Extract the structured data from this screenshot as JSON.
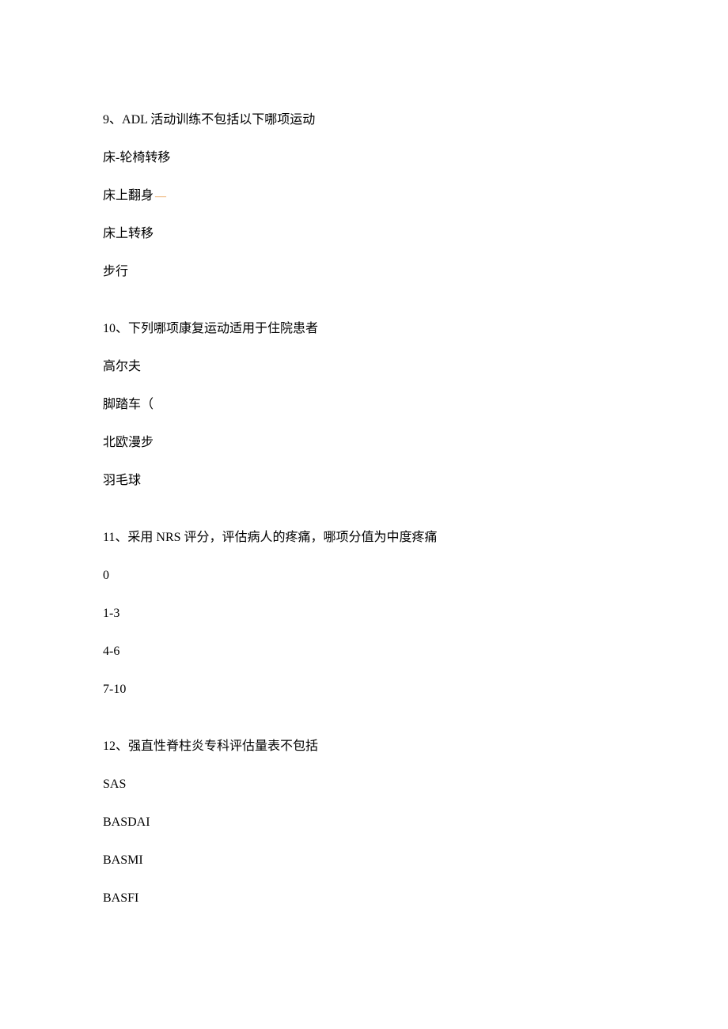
{
  "questions": [
    {
      "number": "9",
      "title": "ADL 活动训练不包括以下哪项运动",
      "options": [
        {
          "text": "床-轮椅转移",
          "mark": ""
        },
        {
          "text": "床上翻身",
          "mark": "—"
        },
        {
          "text": "床上转移",
          "mark": ""
        },
        {
          "text": "步行",
          "mark": ""
        }
      ]
    },
    {
      "number": "10",
      "title": "下列哪项康复运动适用于住院患者",
      "options": [
        {
          "text": "高尔夫",
          "mark": ""
        },
        {
          "text": "脚踏车（",
          "mark": ""
        },
        {
          "text": "北欧漫步",
          "mark": ""
        },
        {
          "text": "羽毛球",
          "mark": ""
        }
      ]
    },
    {
      "number": "11",
      "title": "采用 NRS 评分，评估病人的疼痛，哪项分值为中度疼痛",
      "options": [
        {
          "text": "0",
          "mark": ""
        },
        {
          "text": "1-3",
          "mark": ""
        },
        {
          "text": "4-6",
          "mark": ""
        },
        {
          "text": "7-10",
          "mark": ""
        }
      ]
    },
    {
      "number": "12",
      "title": "强直性脊柱炎专科评估量表不包括",
      "options": [
        {
          "text": "SAS",
          "mark": ""
        },
        {
          "text": "BASDAI",
          "mark": ""
        },
        {
          "text": "BASMI",
          "mark": ""
        },
        {
          "text": "BASFI",
          "mark": ""
        }
      ]
    }
  ],
  "separator": "、"
}
